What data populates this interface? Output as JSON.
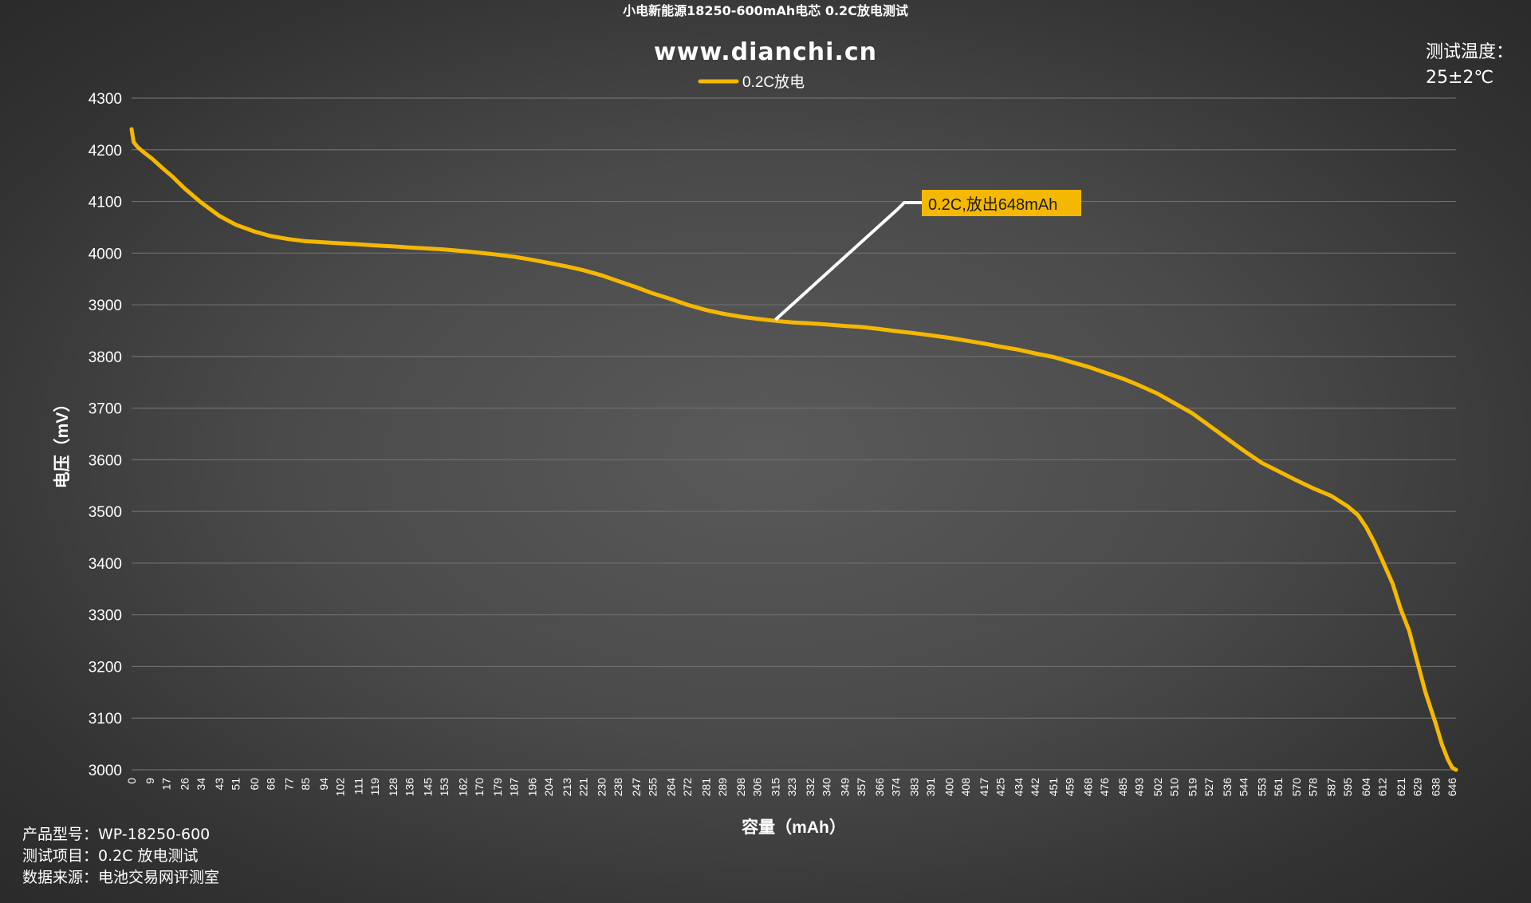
{
  "header": {
    "title": "小电新能源18250-600mAh电芯 0.2C放电测试",
    "subtitle": "www.dianchi.cn"
  },
  "temperature": {
    "label": "测试温度：",
    "value": "25±2℃"
  },
  "info": {
    "model_label": "产品型号：",
    "model_value": "WP-18250-600",
    "item_label": "测试项目：",
    "item_value": "0.2C 放电测试",
    "source_label": "数据来源：",
    "source_value": "电池交易网评测室"
  },
  "colors": {
    "series": "#f5b800",
    "grid": "#6e6e6e",
    "text": "#ffffff",
    "callout_bg": "#f5b800",
    "callout_line": "#ffffff"
  },
  "chart_data": {
    "type": "line",
    "xlabel": "容量（mAh）",
    "ylabel": "电压（mV）",
    "ylim": [
      3000,
      4300
    ],
    "yticks": [
      3000,
      3100,
      3200,
      3300,
      3400,
      3500,
      3600,
      3700,
      3800,
      3900,
      4000,
      4100,
      4200,
      4300
    ],
    "xlim": [
      0,
      648
    ],
    "xticks": [
      0,
      9,
      17,
      26,
      34,
      43,
      51,
      60,
      68,
      77,
      85,
      94,
      102,
      111,
      119,
      128,
      136,
      145,
      153,
      162,
      170,
      179,
      187,
      196,
      204,
      213,
      221,
      230,
      238,
      247,
      255,
      264,
      272,
      281,
      289,
      298,
      306,
      315,
      323,
      332,
      340,
      349,
      357,
      366,
      374,
      383,
      391,
      400,
      408,
      417,
      425,
      434,
      442,
      451,
      459,
      468,
      476,
      485,
      493,
      502,
      510,
      519,
      527,
      536,
      544,
      553,
      561,
      570,
      578,
      587,
      595,
      604,
      612,
      621,
      629,
      638,
      646
    ],
    "grid": true,
    "legend_position": "top-center",
    "series": [
      {
        "name": "0.2C放电",
        "x": [
          0,
          1,
          3,
          6,
          10,
          15,
          20,
          26,
          34,
          43,
          51,
          60,
          68,
          77,
          85,
          94,
          102,
          111,
          119,
          128,
          136,
          145,
          153,
          162,
          170,
          179,
          187,
          196,
          204,
          213,
          221,
          230,
          238,
          247,
          255,
          264,
          272,
          281,
          289,
          298,
          306,
          315,
          323,
          332,
          340,
          349,
          357,
          366,
          374,
          383,
          391,
          400,
          408,
          417,
          425,
          434,
          442,
          451,
          459,
          468,
          476,
          485,
          493,
          502,
          510,
          519,
          527,
          536,
          544,
          553,
          561,
          570,
          578,
          587,
          595,
          600,
          604,
          608,
          612,
          617,
          621,
          625,
          629,
          633,
          638,
          641,
          644,
          646,
          647,
          648
        ],
        "y": [
          4240,
          4215,
          4205,
          4195,
          4183,
          4165,
          4148,
          4125,
          4098,
          4072,
          4055,
          4042,
          4033,
          4027,
          4023,
          4021,
          4019,
          4017,
          4015,
          4013,
          4011,
          4009,
          4007,
          4004,
          4001,
          3997,
          3993,
          3987,
          3981,
          3974,
          3967,
          3957,
          3946,
          3934,
          3922,
          3911,
          3900,
          3890,
          3883,
          3877,
          3873,
          3869,
          3866,
          3864,
          3862,
          3859,
          3857,
          3853,
          3849,
          3845,
          3841,
          3836,
          3831,
          3825,
          3819,
          3813,
          3806,
          3799,
          3790,
          3780,
          3769,
          3757,
          3744,
          3728,
          3710,
          3690,
          3667,
          3641,
          3618,
          3594,
          3578,
          3560,
          3545,
          3530,
          3510,
          3493,
          3470,
          3440,
          3405,
          3360,
          3310,
          3270,
          3210,
          3150,
          3090,
          3050,
          3020,
          3005,
          3002,
          3000
        ]
      }
    ],
    "annotation": {
      "text": "0.2C,放出648mAh",
      "x": 315,
      "y": 3871
    }
  }
}
